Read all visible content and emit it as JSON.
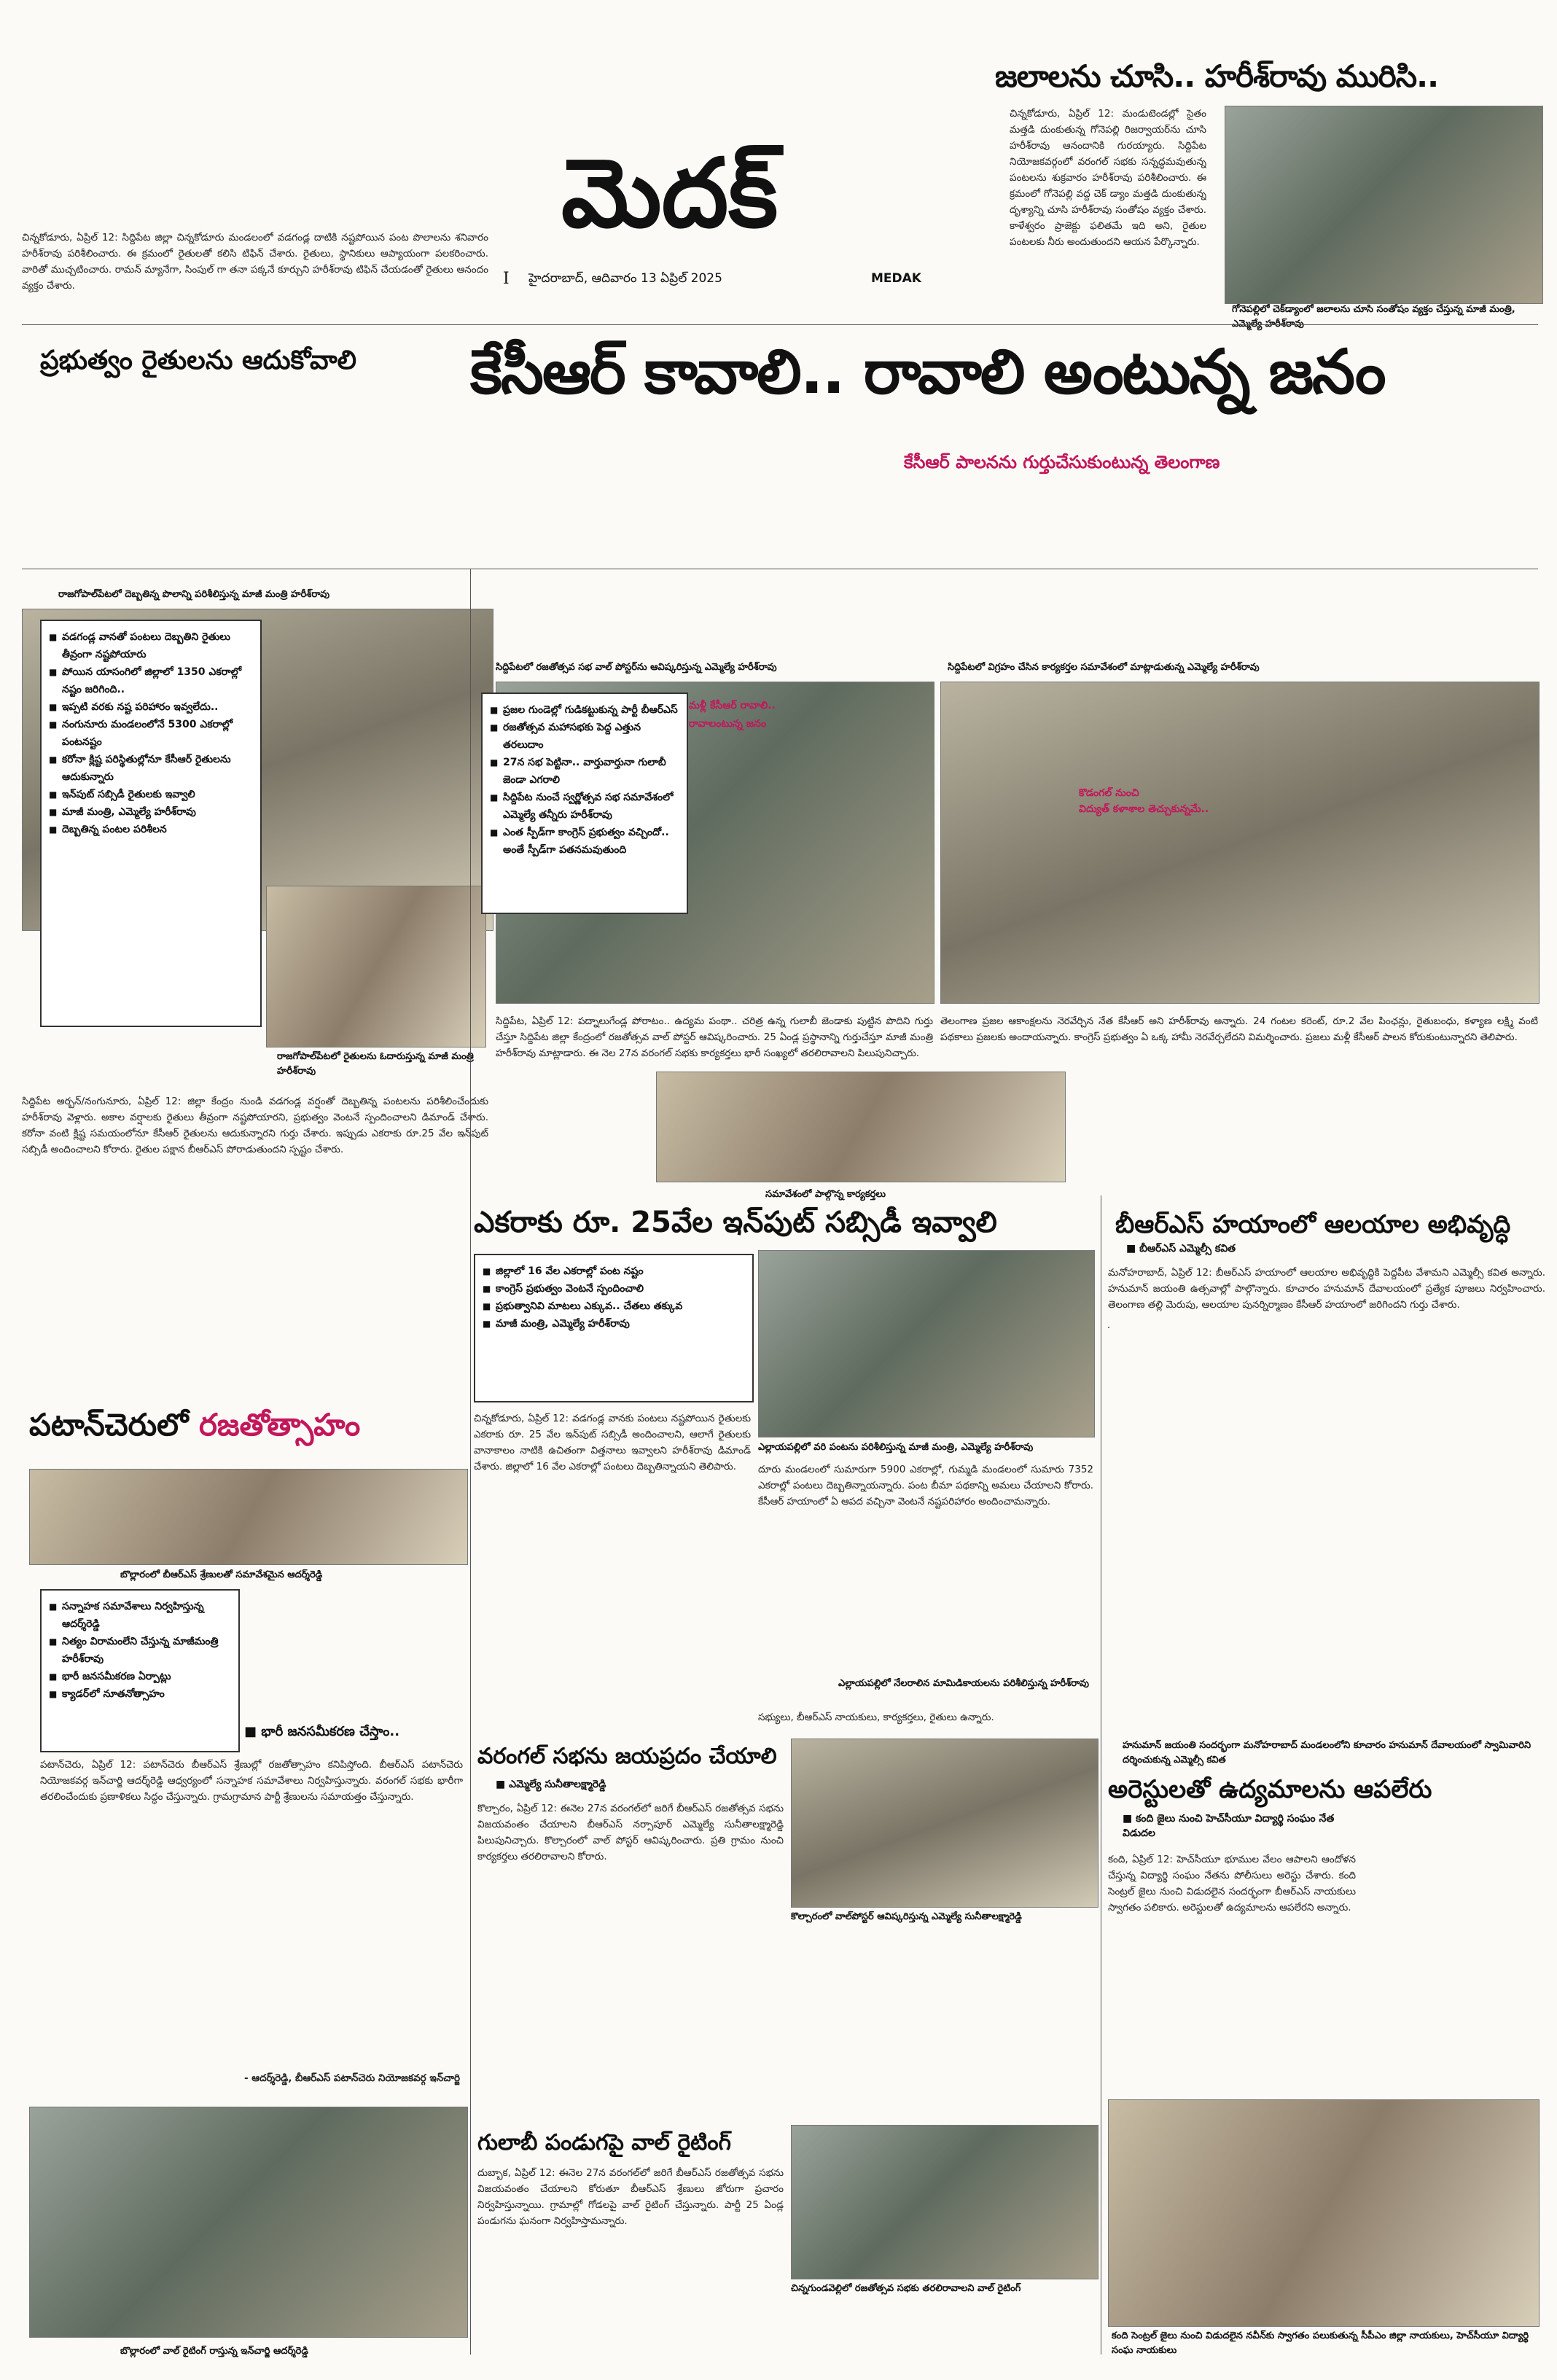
{
  "masthead": {
    "title": "మెదక్",
    "issue_no": "I",
    "dateline": "హైదరాబాద్, ఆదివారం 13 ఏప్రిల్ 2025",
    "district": "MEDAK"
  },
  "top_right": {
    "headline": "జలాలను చూసి.. హరీశ్‌రావు మురిసి..",
    "body": "చిన్నకోడూరు, ఏప్రిల్ 12: మండుటెండల్లో సైతం మత్తడి దుంకుతున్న గోనెపల్లి రిజర్వాయర్‌ను చూసి హరీశ్‌రావు ఆనందానికి గురయ్యారు. సిద్దిపేట నియోజకవర్గంలో వరంగల్ సభకు సన్నద్ధమవుతున్న పంటలను శుక్రవారం హరీశ్‌రావు పరిశీలించారు. ఈ క్రమంలో గోనెపల్లి వద్ద చెక్ డ్యాం మత్తడి దుంకుతున్న దృశ్యాన్ని చూసి హరీశ్‌రావు సంతోషం వ్యక్తం చేశారు. కాళేశ్వరం ప్రాజెక్టు ఫలితమే ఇది అని, రైతుల పంటలకు నీరు అందుతుందని ఆయన పేర్కొన్నారు.",
    "caption": "గోనెపల్లిలో చెక్‌డ్యాంలో జలాలను చూసి సంతోషం వ్యక్తం చేస్తున్న మాజీ మంత్రి, ఎమ్మెల్యే హరీశ్‌రావు"
  },
  "top_left_snippet": "చిన్నకోడూరు, ఏప్రిల్ 12: సిద్దిపేట జిల్లా చిన్నకోడూరు మండలంలో వడగండ్ల దాటికి నష్టపోయిన పంట పొలాలను శనివారం హరీశ్‌రావు పరిశీలించారు. ఈ క్రమంలో రైతులతో కలిసి టిఫిన్ చేశారు. రైతులు, స్థానికులు ఆప్యాయంగా పలకరించారు. వారితో ముచ్చటించారు. రామన్ మ్యానేగా, సింపుల్ గా తనా పక్కనే కూర్చుని హరీశ్‌రావు టిఫిన్ చేయడంతో రైతులు ఆనందం వ్యక్తం చేశారు.",
  "left_headline": "ప్రభుత్వం రైతులను ఆదుకోవాలి",
  "main": {
    "headline": "కేసీఆర్ కావాలి.. రావాలి అంటున్న జనం",
    "subhead": "కేసీఆర్ పాలనను గుర్తుచేసుకుంటున్న తెలంగాణ"
  },
  "left_col": {
    "photo_caption": "రాజగోపాల్‌పేటలో దెబ్బతిన్న పొలాన్ని పరిశీలిస్తున్న మాజీ మంత్రి హరీశ్‌రావు",
    "bullets": [
      "వడగండ్ల వానతో పంటలు దెబ్బతిని రైతులు తీవ్రంగా నష్టపోయారు",
      "పోయిన యాసంగిలో జిల్లాలో 1350 ఎకరాల్లో నష్టం జరిగింది..",
      "ఇప్పటి వరకు నష్ట పరిహారం ఇవ్వలేదు..",
      "నంగునూరు మండలంలోనే 5300 ఎకరాల్లో పంటనష్టం",
      "కరోనా క్లిష్ట పరిస్థితుల్లోనూ కేసీఆర్ రైతులను ఆదుకున్నారు",
      "ఇన్‌పుట్ సబ్సిడీ రైతులకు ఇవ్వాలి",
      "మాజీ మంత్రి, ఎమ్మెల్యే హరీశ్‌రావు",
      "దెబ్బతిన్న పంటల పరిశీలన"
    ],
    "inset_caption": "రాజగోపాల్‌పేటలో రైతులను ఓదారుస్తున్న మాజీ మంత్రి హరీశ్‌రావు",
    "body": "సిద్దిపేట అర్బన్/నంగునూరు, ఏప్రిల్ 12: జిల్లా కేంద్రం నుండి వడగండ్ల వర్షంతో దెబ్బతిన్న పంటలను పరిశీలించేందుకు హరీశ్‌రావు వెళ్లారు. అకాల వర్షాలకు రైతులు తీవ్రంగా నష్టపోయారని, ప్రభుత్వం వెంటనే స్పందించాలని డిమాండ్ చేశారు. కరోనా వంటి క్లిష్ట సమయంలోనూ కేసీఆర్ రైతులను ఆదుకున్నారని గుర్తు చేశారు. ఇప్పుడు ఎకరాకు రూ.25 వేల ఇన్‌పుట్ సబ్సిడీ అందించాలని కోరారు. రైతుల పక్షాన బీఆర్ఎస్ పోరాడుతుందని స్పష్టం చేశారు."
  },
  "center_col": {
    "photo_caption": "సిద్దిపేటలో రజతోత్సవ సభ వాల్ పోస్టర్‌ను ఆవిష్కరిస్తున్న ఎమ్మెల్యే హరీశ్‌రావు",
    "bullets": [
      "ప్రజల గుండెల్లో గుడికట్టుకున్న పార్టీ బీఆర్ఎస్",
      "రజతోత్సవ మహాసభకు పెద్ద ఎత్తున తరలుదాం",
      "27న సభ పెట్టినా.. వార్తువార్తునా గులాబీ జెండా ఎగరాలి",
      "సిద్దిపేట నుంచే స్వర్ణోత్సవ సభ సమావేశంలో ఎమ్మెల్యే తన్నీరు హరీశ్‌రావు",
      "ఎంత స్పీడ్‌గా కాంగ్రెస్ ప్రభుత్వం వచ్చిందో.. అంతే స్పీడ్‌గా పతనమవుతుంది"
    ],
    "body": "సిద్దిపేట, ఏప్రిల్ 12: పద్నాలుగేండ్ల పోరాటం.. ఉద్యమ పంథా.. చరిత్ర ఉన్న గులాబీ జెండాకు పుట్టిన పొదిని గుర్తు చేస్తూ సిద్దిపేట జిల్లా కేంద్రంలో రజతోత్సవ వాల్ పోస్టర్ ఆవిష్కరించారు. 25 ఏండ్ల ప్రస్థానాన్ని గుర్తుచేస్తూ మాజీ మంత్రి హరీశ్‌రావు మాట్లాడారు. ఈ నెల 27న వరంగల్ సభకు కార్యకర్తలు భారీ సంఖ్యలో తరలిరావాలని పిలుపునిచ్చారు.",
    "kcr_label": "మళ్లీ కేసీఆర్ రావాలి..",
    "kcr_label2": "రావాలంటున్న జనం"
  },
  "right_col": {
    "photo_caption": "సిద్దిపేటలో విగ్రహం చేసిన కార్యకర్తల సమావేశంలో మాట్లాడుతున్న ఎమ్మెల్యే హరీశ్‌రావు",
    "sub": "కొడంగల్ నుంచి",
    "sub2": "విద్యుత్ కళాశాల తెచ్చుకున్నమే..",
    "body": "తెలంగాణ ప్రజల ఆకాంక్షలను నెరవేర్చిన నేత కేసీఆర్ అని హరీశ్‌రావు అన్నారు. 24 గంటల కరెంట్, రూ.2 వేల పింఛన్లు, రైతుబంధు, కళ్యాణ లక్ష్మి వంటి పథకాలు ప్రజలకు అందాయన్నారు. కాంగ్రెస్ ప్రభుత్వం ఏ ఒక్క హామీ నెరవేర్చలేదని విమర్శించారు. ప్రజలు మళ్లీ కేసీఆర్ పాలన కోరుకుంటున్నారని తెలిపారు.",
    "caption2": "సమావేశంలో పాల్గొన్న కార్యకర్తలు"
  },
  "input_subsidy": {
    "headline": "ఎకరాకు రూ. 25వేల ఇన్‌పుట్ సబ్సిడీ ఇవ్వాలి",
    "bullets": [
      "జిల్లాలో 16 వేల ఎకరాల్లో పంట నష్టం",
      "కాంగ్రెస్ ప్రభుత్వం వెంటనే స్పందించాలి",
      "ప్రభుత్వానివి మాటలు ఎక్కువ.. చేతలు తక్కువ",
      "మాజీ మంత్రి, ఎమ్మెల్యే హరీశ్‌రావు"
    ],
    "body": "చిన్నకోడూరు, ఏప్రిల్ 12: వడగండ్ల వానకు పంటలు నష్టపోయిన రైతులకు ఎకరాకు రూ. 25 వేల ఇన్‌పుట్ సబ్సిడీ అందించాలని, ఆలాగే రైతులకు వానాకాలం నాటికి ఉచితంగా విత్తనాలు ఇవ్వాలని హరీశ్‌రావు డిమాండ్ చేశారు. జిల్లాలో 16 వేల ఎకరాల్లో పంటలు దెబ్బతిన్నాయని తెలిపారు.",
    "photo_caption": "ఎల్లాయపల్లిలో వరి పంటను పరిశీలిస్తున్న మాజీ మంత్రి, ఎమ్మెల్యే హరీశ్‌రావు",
    "body2": "దూరు మండలంలో సుమారుగా 5900 ఎకరాల్లో, గుమ్మడి మండలంలో సుమారు 7352 ఎకరాల్లో పంటలు దెబ్బతిన్నాయన్నారు. పంట బీమా పథకాన్ని అమలు చేయాలని కోరారు. కేసీఆర్ హయాంలో ఏ ఆపద వచ్చినా వెంటనే నష్టపరిహారం అందించామన్నారు.",
    "caption3": "ఎల్లాయపల్లిలో నేలరాలిన మామిడికాయలను పరిశీలిస్తున్న హరీశ్‌రావు",
    "body3": "సభ్యులు, బీఆర్ఎస్ నాయకులు, కార్యకర్తలు, రైతులు ఉన్నారు."
  },
  "temple": {
    "headline": "బీఆర్ఎస్ హయాంలో ఆలయాల అభివృద్ధి",
    "byline": "బీఆర్ఎస్ ఎమ్మెల్సీ కవిత",
    "body": "మనోహరాబాద్, ఏప్రిల్ 12: బీఆర్ఎస్ హయాంలో ఆలయాల అభివృద్ధికి పెద్దపీట వేశామని ఎమ్మెల్సీ కవిత అన్నారు. హనుమాన్ జయంతి ఉత్సవాల్లో పాల్గొన్నారు. కూచారం హనుమాన్ దేవాలయంలో ప్రత్యేక పూజలు నిర్వహించారు. తెలంగాణ తల్లి మెరుపు, ఆలయాల పునర్నిర్మాణం కేసీఆర్ హయాంలో జరిగిందని గుర్తు చేశారు.",
    "caption": "హనుమాన్ జయంతి సందర్భంగా మనోహరాబాద్ మండలంలోని కూచారం హనుమాన్ దేవాలయంలో స్వామివారిని దర్శించుకున్న ఎమ్మెల్సీ కవిత"
  },
  "patancheru": {
    "headline_a": "పటాన్‌చెరులో ",
    "headline_b": "రజతోత్సాహం",
    "photo_caption": "బొల్లారంలో బీఆర్ఎస్ శ్రేణులతో సమావేశమైన ఆదర్శ్‌రెడ్డి",
    "bullets": [
      "సన్నాహక సమావేశాలు నిర్వహిస్తున్న ఆదర్శ్‌రెడ్డి",
      "నిత్యం విరామంలేని చేస్తున్న మాజీమంత్రి హరీశ్‌రావు",
      "భారీ జనసమీకరణ ఏర్పాట్లు",
      "క్యాడర్‌లో నూతనోత్సాహం"
    ],
    "quote_head": "భారీ జనసమీకరణ చేస్తాం..",
    "body": "పటాన్‌చెరు, ఏప్రిల్ 12: పటాన్‌చెరు బీఆర్ఎస్ శ్రేణుల్లో రజతోత్సాహం కనిపిస్తోంది. బీఆర్ఎస్ పటాన్‌చెరు నియోజకవర్గ ఇన్‌చార్జి ఆదర్శ్‌రెడ్డి ఆధ్వర్యంలో సన్నాహక సమావేశాలు నిర్వహిస్తున్నారు. వరంగల్ సభకు భారీగా తరలించేందుకు ప్రణాళికలు సిద్ధం చేస్తున్నారు. గ్రామగ్రామాన పార్టీ శ్రేణులను సమాయత్తం చేస్తున్నారు.",
    "sig": "- ఆదర్శ్‌రెడ్డి, బీఆర్ఎస్ పటాన్‌చెరు నియోజకవర్గ ఇన్‌చార్జి",
    "bottom_caption": "బొల్లారంలో వాల్ రైటింగ్ రాస్తున్న ఇన్‌చార్జి ఆదర్శ్‌రెడ్డి"
  },
  "warangal": {
    "headline": "వరంగల్ సభను జయప్రదం చేయాలి",
    "byline": "ఎమ్మెల్యే సునీతాలక్ష్మారెడ్డి",
    "body": "కొల్చారం, ఏప్రిల్ 12: ఈనెల 27న వరంగల్‌లో జరిగే బీఆర్ఎస్ రజతోత్సవ సభను విజయవంతం చేయాలని బీఆర్ఎస్ నర్సాపూర్ ఎమ్మెల్యే సునీతాలక్ష్మారెడ్డి పిలుపునిచ్చారు. కొల్చారంలో వాల్ పోస్టర్ ఆవిష్కరించారు. ప్రతి గ్రామం నుంచి కార్యకర్తలు తరలిరావాలని కోరారు.",
    "photo_caption": "కొల్చారంలో వాల్‌పోస్టర్ ఆవిష్కరిస్తున్న ఎమ్మెల్యే సునీతాలక్ష్మారెడ్డి"
  },
  "arrests": {
    "headline": "అరెస్టులతో ఉద్యమాలను ఆపలేరు",
    "byline": "కంది జైలు నుంచి హెచ్‌సీయూ విద్యార్థి సంఘం నేత విడుదల",
    "body": "కంది, ఏప్రిల్ 12: హెచ్‌సీయూ భూముల వేలం ఆపాలని ఆందోళన చేస్తున్న విద్యార్థి సంఘం నేతను పోలీసులు అరెస్టు చేశారు. కంది సెంట్రల్ జైలు నుంచి విడుదలైన సందర్భంగా బీఆర్ఎస్ నాయకులు స్వాగతం పలికారు. అరెస్టులతో ఉద్యమాలను ఆపలేరని అన్నారు.",
    "caption": "కంది సెంట్రల్ జైలు నుంచి విడుదలైన నవీన్‌కు స్వాగతం పలుకుతున్న సీపీఎం జిల్లా నాయకులు, హెచ్‌సీయూ విద్యార్థి సంఘ నాయకులు"
  },
  "wall_writing": {
    "headline": "గులాబీ పండుగపై వాల్ రైటింగ్",
    "body": "దుబ్బాక, ఏప్రిల్ 12: ఈనెల 27న వరంగల్‌లో జరిగే బీఆర్ఎస్ రజతోత్సవ సభను విజయవంతం చేయాలని కోరుతూ బీఆర్ఎస్ శ్రేణులు జోరుగా ప్రచారం నిర్వహిస్తున్నాయి. గ్రామాల్లో గోడలపై వాల్ రైటింగ్ చేస్తున్నారు. పార్టీ 25 ఏండ్ల పండుగను ఘనంగా నిర్వహిస్తామన్నారు.",
    "photo_caption": "చిన్నగుండవెల్లిలో రజతోత్సవ సభకు తరలిరావాలని వాల్ రైటింగ్"
  },
  "colors": {
    "accent": "#c2185b",
    "rule": "#555555"
  }
}
